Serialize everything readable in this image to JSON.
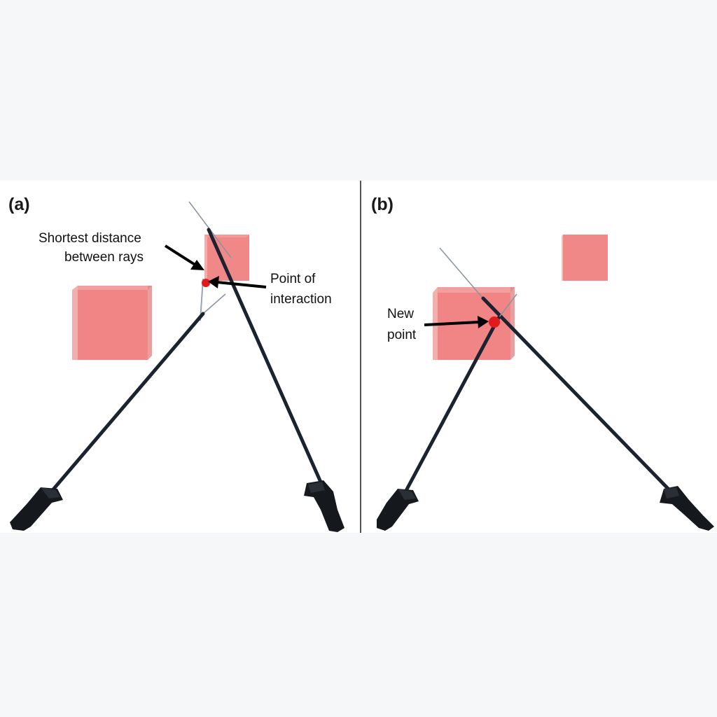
{
  "panels": [
    {
      "label": "(a)",
      "annotations": [
        {
          "lines": [
            "Shortest distance",
            "between rays"
          ]
        },
        {
          "lines": [
            "Point of",
            "interaction"
          ]
        }
      ]
    },
    {
      "label": "(b)",
      "annotations": [
        {
          "lines": [
            "New",
            "point"
          ]
        }
      ]
    }
  ],
  "colors": {
    "page_background": "#f6f7f9",
    "figure_background": "#ffffff",
    "cube_fill": "#ef6f6f",
    "ray": "#1b2230",
    "controller": "#15181d",
    "interaction_point": "#e11b1b",
    "divider": "#555555"
  }
}
